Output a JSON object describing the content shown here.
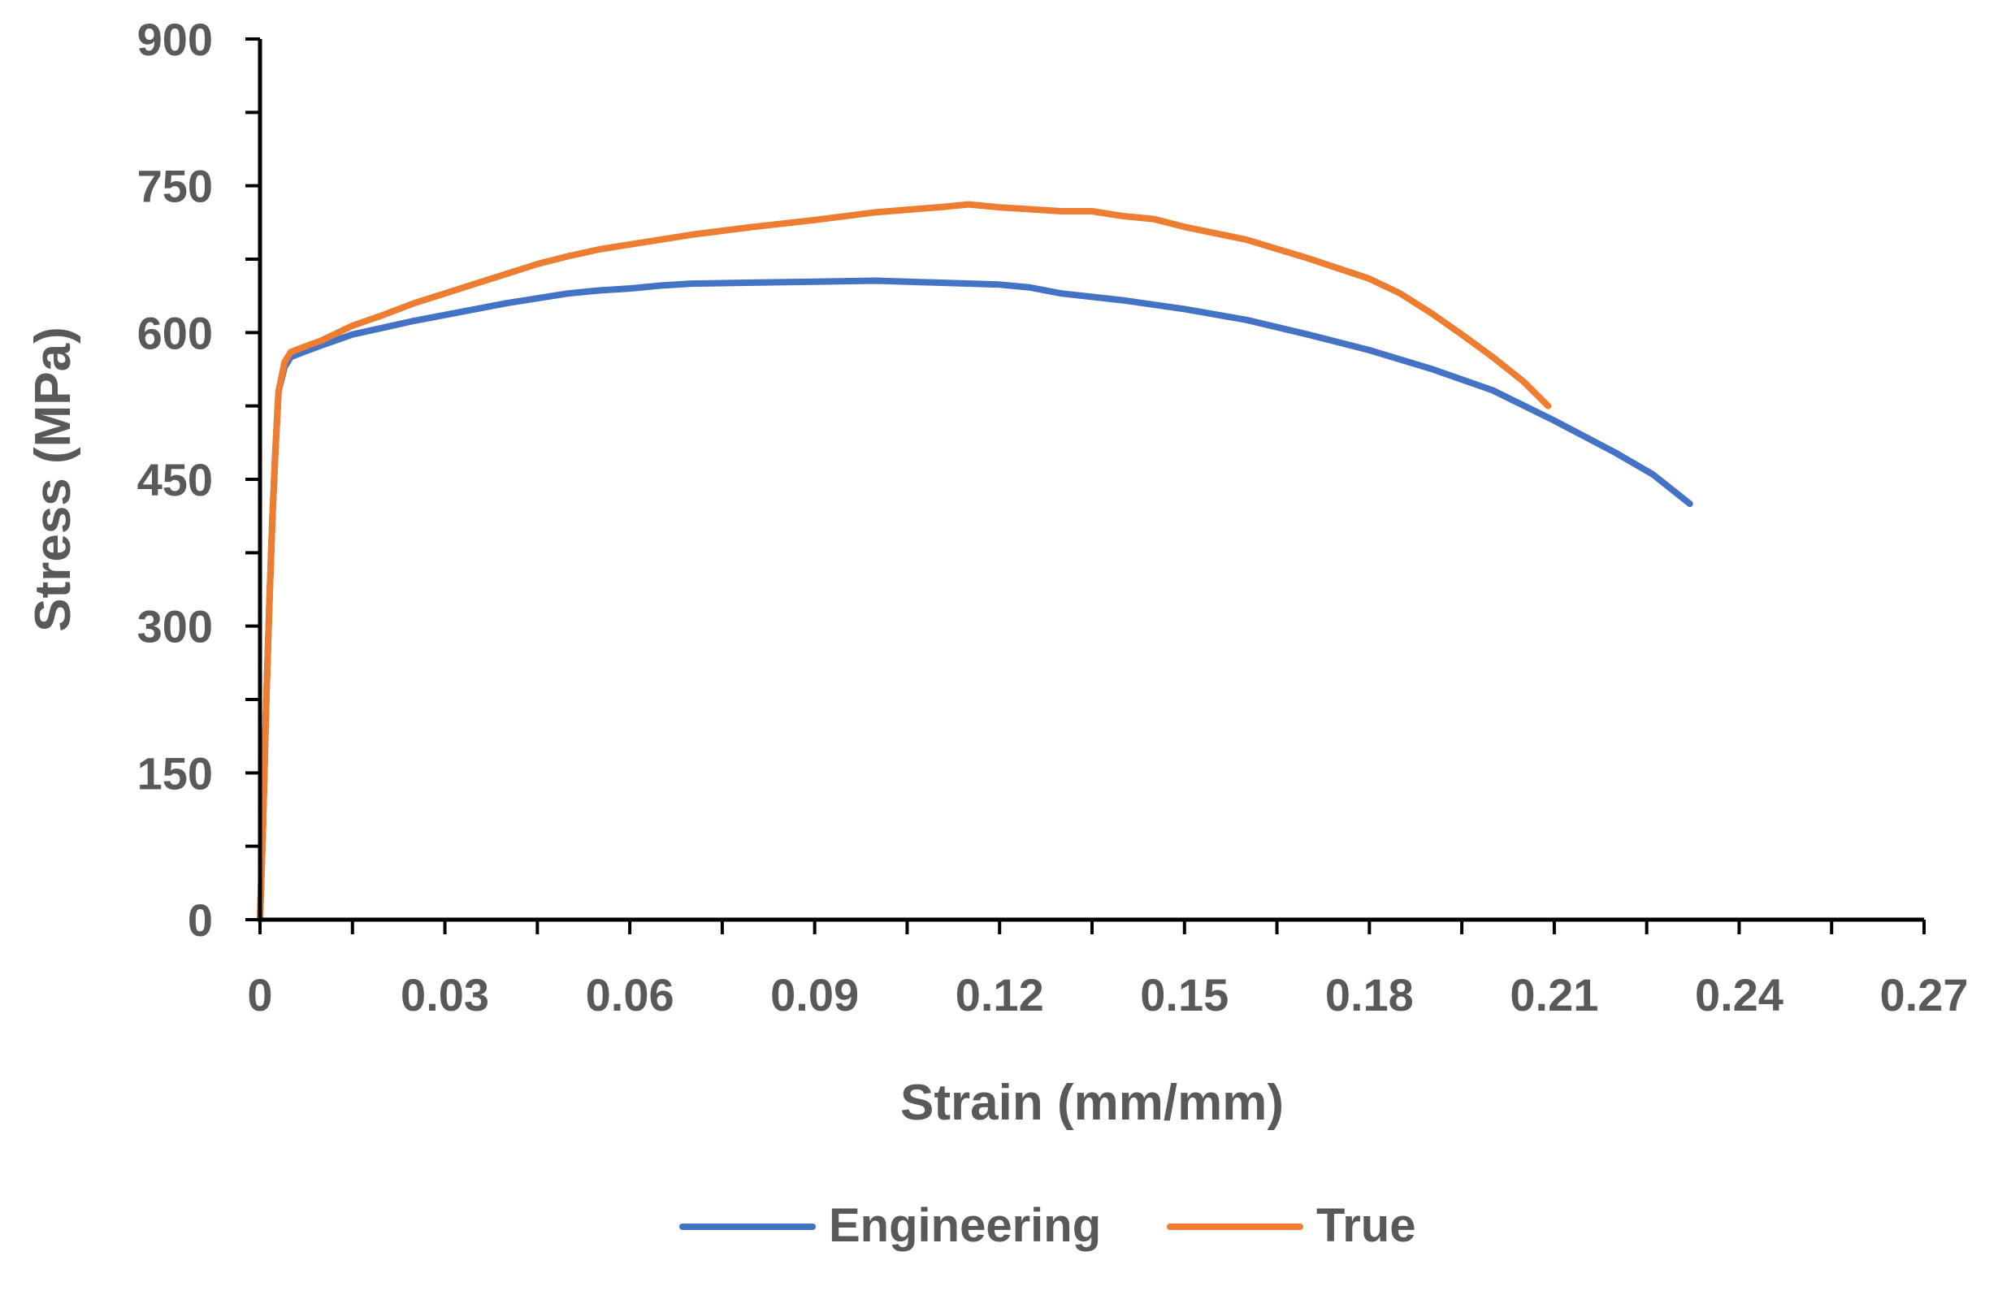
{
  "chart_data": {
    "type": "line",
    "title": "",
    "xlabel": "Strain (mm/mm)",
    "ylabel": "Stress (MPa)",
    "xlim": [
      0,
      0.27
    ],
    "ylim": [
      0,
      900
    ],
    "x_ticks": [
      0,
      0.03,
      0.06,
      0.09,
      0.12,
      0.15,
      0.18,
      0.21,
      0.24,
      0.27
    ],
    "x_tick_labels": [
      "0",
      "0.03",
      "0.06",
      "0.09",
      "0.12",
      "0.15",
      "0.18",
      "0.21",
      "0.24",
      "0.27"
    ],
    "y_ticks": [
      0,
      150,
      300,
      450,
      600,
      750,
      900
    ],
    "y_tick_labels": [
      "0",
      "150",
      "300",
      "450",
      "600",
      "750",
      "900"
    ],
    "grid": false,
    "legend_position": "bottom",
    "series": [
      {
        "name": "Engineering",
        "color": "#4472C4",
        "points": [
          [
            0,
            0
          ],
          [
            0.0005,
            100
          ],
          [
            0.001,
            220
          ],
          [
            0.0015,
            320
          ],
          [
            0.002,
            410
          ],
          [
            0.0025,
            480
          ],
          [
            0.003,
            540
          ],
          [
            0.004,
            565
          ],
          [
            0.005,
            575
          ],
          [
            0.007,
            580
          ],
          [
            0.01,
            587
          ],
          [
            0.015,
            598
          ],
          [
            0.02,
            605
          ],
          [
            0.025,
            612
          ],
          [
            0.03,
            618
          ],
          [
            0.035,
            624
          ],
          [
            0.04,
            630
          ],
          [
            0.045,
            635
          ],
          [
            0.05,
            640
          ],
          [
            0.055,
            643
          ],
          [
            0.06,
            645
          ],
          [
            0.065,
            648
          ],
          [
            0.07,
            650
          ],
          [
            0.08,
            651
          ],
          [
            0.09,
            652
          ],
          [
            0.1,
            653
          ],
          [
            0.11,
            651
          ],
          [
            0.12,
            649
          ],
          [
            0.125,
            646
          ],
          [
            0.13,
            640
          ],
          [
            0.14,
            633
          ],
          [
            0.15,
            624
          ],
          [
            0.16,
            613
          ],
          [
            0.17,
            598
          ],
          [
            0.18,
            582
          ],
          [
            0.19,
            563
          ],
          [
            0.2,
            541
          ],
          [
            0.21,
            510
          ],
          [
            0.22,
            477
          ],
          [
            0.226,
            455
          ],
          [
            0.232,
            425
          ]
        ]
      },
      {
        "name": "True",
        "color": "#ED7D31",
        "points": [
          [
            0,
            0
          ],
          [
            0.0005,
            100
          ],
          [
            0.001,
            220
          ],
          [
            0.0015,
            320
          ],
          [
            0.002,
            410
          ],
          [
            0.0025,
            480
          ],
          [
            0.003,
            540
          ],
          [
            0.004,
            570
          ],
          [
            0.005,
            580
          ],
          [
            0.007,
            585
          ],
          [
            0.01,
            592
          ],
          [
            0.015,
            607
          ],
          [
            0.02,
            618
          ],
          [
            0.025,
            630
          ],
          [
            0.03,
            640
          ],
          [
            0.035,
            650
          ],
          [
            0.04,
            660
          ],
          [
            0.045,
            670
          ],
          [
            0.05,
            678
          ],
          [
            0.055,
            685
          ],
          [
            0.06,
            690
          ],
          [
            0.07,
            700
          ],
          [
            0.08,
            708
          ],
          [
            0.09,
            715
          ],
          [
            0.1,
            723
          ],
          [
            0.11,
            728
          ],
          [
            0.115,
            731
          ],
          [
            0.12,
            728
          ],
          [
            0.13,
            724
          ],
          [
            0.135,
            724
          ],
          [
            0.14,
            719
          ],
          [
            0.145,
            716
          ],
          [
            0.15,
            708
          ],
          [
            0.16,
            695
          ],
          [
            0.17,
            676
          ],
          [
            0.18,
            655
          ],
          [
            0.185,
            640
          ],
          [
            0.19,
            620
          ],
          [
            0.195,
            598
          ],
          [
            0.2,
            575
          ],
          [
            0.205,
            550
          ],
          [
            0.209,
            525
          ]
        ]
      }
    ]
  }
}
